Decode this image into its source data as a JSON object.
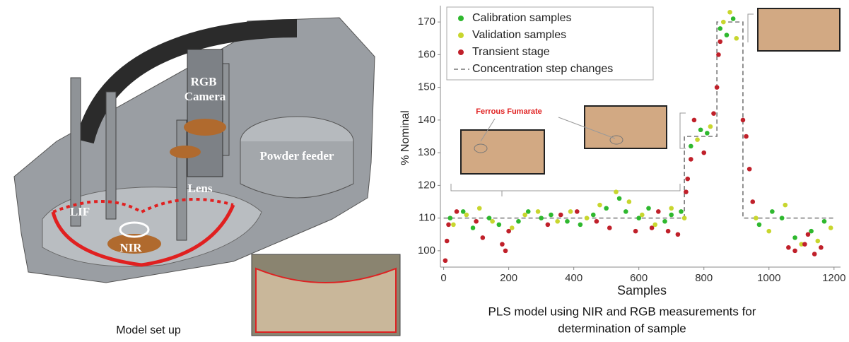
{
  "left_panel": {
    "caption": "Model set up",
    "labels": [
      "RGB",
      "Camera",
      "Powder feeder",
      "Lens",
      "LIF",
      "NIR"
    ]
  },
  "chart_data": {
    "type": "scatter",
    "y_label": "% Nominal",
    "x_label": "Samples",
    "caption": [
      "PLS model using NIR and RGB measurements for",
      "determination of sample"
    ],
    "annotation": "Ferrous Fumarate",
    "xlim": [
      -10,
      1220
    ],
    "ylim": [
      95,
      175
    ],
    "xticks": [
      0,
      200,
      400,
      600,
      800,
      1000,
      1200
    ],
    "yticks": [
      100,
      110,
      120,
      130,
      140,
      150,
      160,
      170
    ],
    "series": [
      {
        "name": "Calibration samples",
        "color": "#2eb82e",
        "x": [
          20,
          60,
          90,
          140,
          170,
          230,
          260,
          300,
          330,
          380,
          420,
          460,
          500,
          540,
          560,
          600,
          630,
          680,
          700,
          730,
          760,
          790,
          810,
          850,
          870,
          890,
          970,
          1010,
          1040,
          1080,
          1130,
          1170
        ],
        "values": [
          110,
          112,
          107,
          110,
          108,
          109,
          112,
          110,
          111,
          109,
          108,
          111,
          113,
          116,
          112,
          110,
          113,
          109,
          111,
          112,
          132,
          137,
          136,
          168,
          166,
          171,
          108,
          112,
          110,
          104,
          106,
          109
        ]
      },
      {
        "name": "Validation samples",
        "color": "#c8d62e",
        "x": [
          30,
          70,
          110,
          150,
          210,
          250,
          290,
          350,
          390,
          440,
          480,
          530,
          570,
          610,
          650,
          700,
          740,
          780,
          820,
          860,
          880,
          900,
          960,
          1000,
          1050,
          1100,
          1150,
          1190
        ],
        "values": [
          108,
          111,
          113,
          109,
          107,
          111,
          112,
          109,
          112,
          110,
          114,
          118,
          115,
          111,
          108,
          113,
          110,
          134,
          138,
          170,
          173,
          165,
          110,
          106,
          114,
          102,
          103,
          107
        ]
      },
      {
        "name": "Transient stage",
        "color": "#c0202a",
        "x": [
          5,
          10,
          15,
          40,
          100,
          120,
          180,
          190,
          200,
          320,
          360,
          410,
          470,
          510,
          590,
          640,
          660,
          690,
          720,
          745,
          750,
          760,
          770,
          800,
          830,
          840,
          845,
          850,
          920,
          930,
          940,
          950,
          1060,
          1080,
          1110,
          1120,
          1140,
          1160
        ],
        "values": [
          97,
          103,
          108,
          112,
          109,
          104,
          102,
          100,
          106,
          108,
          111,
          112,
          109,
          107,
          106,
          107,
          112,
          106,
          105,
          118,
          122,
          128,
          140,
          130,
          142,
          150,
          160,
          164,
          140,
          135,
          125,
          115,
          101,
          100,
          102,
          105,
          99,
          101
        ]
      }
    ],
    "step_line": {
      "name": "Concentration step changes",
      "color": "#777777",
      "x": [
        0,
        740,
        740,
        840,
        840,
        920,
        920,
        1200
      ],
      "values": [
        110,
        110,
        135,
        135,
        170,
        170,
        110,
        110
      ]
    }
  }
}
